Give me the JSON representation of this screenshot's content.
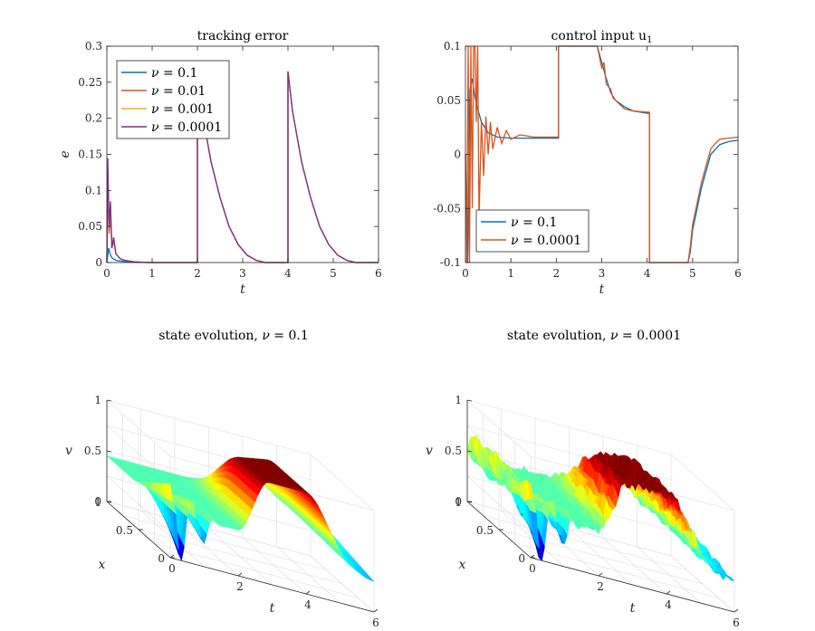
{
  "chart_data": [
    {
      "id": "tracking",
      "type": "line",
      "title": "tracking error",
      "xlabel": "t",
      "ylabel": "e",
      "xlim": [
        0,
        6
      ],
      "ylim": [
        0,
        0.3
      ],
      "xticks": [
        "0",
        "1",
        "2",
        "3",
        "4",
        "5",
        "6"
      ],
      "yticks": [
        "0",
        "0.05",
        "0.1",
        "0.15",
        "0.2",
        "0.25",
        "0.3"
      ],
      "legend_position": "top-left",
      "series": [
        {
          "name": "ν = 0.1",
          "legend_value": "0.1",
          "color": "#0072BD",
          "x": [
            0,
            0.04,
            0.08,
            0.12,
            0.2,
            0.3,
            0.45,
            0.6,
            0.8,
            1.0,
            2.0,
            2.0,
            2.1,
            2.3,
            2.5,
            2.7,
            2.9,
            3.1,
            3.3,
            3.5,
            4.0,
            4.0,
            4.1,
            4.3,
            4.5,
            4.7,
            4.9,
            5.1,
            5.3,
            5.5,
            6.0
          ],
          "y": [
            0,
            0.02,
            0.01,
            0.006,
            0.003,
            0.002,
            0.001,
            0.0005,
            0.0002,
            0,
            0,
            0.265,
            0.21,
            0.14,
            0.09,
            0.05,
            0.025,
            0.01,
            0.003,
            0,
            0,
            0.265,
            0.21,
            0.14,
            0.09,
            0.05,
            0.025,
            0.01,
            0.003,
            0,
            0
          ]
        },
        {
          "name": "ν = 0.01",
          "legend_value": "0.01",
          "color": "#D95319",
          "x": [
            0,
            0.02,
            0.05,
            0.08,
            0.11,
            0.15,
            0.2,
            0.3,
            0.4,
            0.6,
            0.8,
            1.0,
            2.0,
            2.0,
            2.1,
            2.3,
            2.5,
            2.7,
            2.9,
            3.1,
            3.3,
            3.5,
            4.0,
            4.0,
            4.1,
            4.3,
            4.5,
            4.7,
            4.9,
            5.1,
            5.3,
            5.5,
            6.0
          ],
          "y": [
            0,
            0.1,
            0.04,
            0.07,
            0.02,
            0.03,
            0.012,
            0.005,
            0.003,
            0.001,
            0.0003,
            0,
            0,
            0.265,
            0.21,
            0.14,
            0.09,
            0.05,
            0.025,
            0.01,
            0.003,
            0,
            0,
            0.265,
            0.21,
            0.14,
            0.09,
            0.05,
            0.025,
            0.01,
            0.003,
            0,
            0
          ]
        },
        {
          "name": "ν = 0.001",
          "legend_value": "0.001",
          "color": "#EDB120",
          "x": [
            0,
            0.02,
            0.05,
            0.08,
            0.11,
            0.15,
            0.2,
            0.3,
            0.4,
            0.6,
            0.8,
            1.0,
            2.0,
            2.0,
            2.1,
            2.3,
            2.5,
            2.7,
            2.9,
            3.1,
            3.3,
            3.5,
            4.0,
            4.0,
            4.1,
            4.3,
            4.5,
            4.7,
            4.9,
            5.1,
            5.3,
            5.5,
            6.0
          ],
          "y": [
            0,
            0.13,
            0.05,
            0.08,
            0.02,
            0.035,
            0.012,
            0.005,
            0.003,
            0.001,
            0.0003,
            0,
            0,
            0.265,
            0.21,
            0.14,
            0.09,
            0.05,
            0.025,
            0.01,
            0.003,
            0,
            0,
            0.265,
            0.21,
            0.14,
            0.09,
            0.05,
            0.025,
            0.01,
            0.003,
            0,
            0
          ]
        },
        {
          "name": "ν = 0.0001",
          "legend_value": "0.0001",
          "color": "#7E2F8E",
          "x": [
            0,
            0.02,
            0.05,
            0.08,
            0.11,
            0.15,
            0.2,
            0.3,
            0.4,
            0.6,
            0.8,
            1.0,
            2.0,
            2.0,
            2.1,
            2.3,
            2.5,
            2.7,
            2.9,
            3.1,
            3.3,
            3.5,
            4.0,
            4.0,
            4.1,
            4.3,
            4.5,
            4.7,
            4.9,
            5.1,
            5.3,
            5.5,
            6.0
          ],
          "y": [
            0,
            0.145,
            0.05,
            0.085,
            0.02,
            0.035,
            0.012,
            0.005,
            0.003,
            0.001,
            0.0003,
            0,
            0,
            0.265,
            0.21,
            0.14,
            0.09,
            0.05,
            0.025,
            0.01,
            0.003,
            0,
            0,
            0.265,
            0.21,
            0.14,
            0.09,
            0.05,
            0.025,
            0.01,
            0.003,
            0,
            0
          ]
        }
      ]
    },
    {
      "id": "control",
      "type": "line",
      "title": "control input u",
      "title_subscript": "1",
      "xlabel": "t",
      "ylabel": "",
      "xlim": [
        0,
        6
      ],
      "ylim": [
        -0.1,
        0.1
      ],
      "xticks": [
        "0",
        "1",
        "2",
        "3",
        "4",
        "5",
        "6"
      ],
      "yticks": [
        "-0.1",
        "-0.05",
        "0",
        "0.05",
        "0.1"
      ],
      "legend_position": "bottom-left",
      "series": [
        {
          "name": "ν = 0.1",
          "legend_value": "0.1",
          "color": "#0072BD",
          "x": [
            0,
            0.05,
            0.1,
            0.15,
            0.2,
            0.25,
            0.35,
            0.5,
            0.7,
            1.0,
            1.5,
            2.0,
            2.05,
            2.05,
            2.9,
            3.0,
            3.1,
            3.2,
            3.3,
            3.5,
            3.7,
            4.0,
            4.05,
            4.05,
            4.9,
            4.95,
            5.0,
            5.2,
            5.4,
            5.6,
            5.8,
            6.0
          ],
          "y": [
            0,
            -0.1,
            0.06,
            0.07,
            0.055,
            0.045,
            0.03,
            0.02,
            0.016,
            0.015,
            0.015,
            0.015,
            0.015,
            0.1,
            0.1,
            0.085,
            0.07,
            0.057,
            0.05,
            0.044,
            0.04,
            0.038,
            0.038,
            -0.1,
            -0.1,
            -0.09,
            -0.07,
            -0.03,
            0.0,
            0.009,
            0.012,
            0.013
          ]
        },
        {
          "name": "ν = 0.0001",
          "legend_value": "0.0001",
          "color": "#D95319",
          "x": [
            0,
            0.03,
            0.06,
            0.09,
            0.12,
            0.15,
            0.18,
            0.21,
            0.24,
            0.27,
            0.3,
            0.35,
            0.4,
            0.45,
            0.5,
            0.55,
            0.6,
            0.7,
            0.8,
            0.9,
            1.0,
            1.2,
            1.5,
            2.05,
            2.05,
            2.9,
            3.0,
            3.05,
            3.1,
            3.2,
            3.25,
            3.3,
            3.5,
            3.7,
            4.0,
            4.05,
            4.05,
            4.9,
            4.95,
            5.0,
            5.2,
            5.4,
            5.5,
            5.6,
            5.8,
            6.0
          ],
          "y": [
            0,
            -0.1,
            0.1,
            -0.1,
            0.1,
            -0.05,
            0.1,
            0.1,
            0.03,
            0.1,
            -0.06,
            0.03,
            -0.02,
            0.035,
            0.0,
            0.03,
            0.005,
            0.025,
            0.01,
            0.022,
            0.014,
            0.018,
            0.016,
            0.016,
            0.1,
            0.1,
            0.08,
            0.085,
            0.065,
            0.06,
            0.052,
            0.05,
            0.042,
            0.04,
            0.039,
            0.039,
            -0.1,
            -0.1,
            -0.085,
            -0.065,
            -0.025,
            0.005,
            0.01,
            0.014,
            0.015,
            0.016
          ]
        }
      ]
    },
    {
      "id": "surf1",
      "type": "surface",
      "title": "state evolution, ν = 0.1",
      "nu_label": "0.1",
      "xlabel": "t",
      "ylabel": "x",
      "zlabel": "v",
      "xlim": [
        0,
        6
      ],
      "ylim": [
        0,
        1
      ],
      "zlim": [
        0,
        1
      ],
      "xticks": [
        "0",
        "2",
        "4",
        "6"
      ],
      "yticks": [
        "0",
        "0.5",
        "1"
      ],
      "zticks": [
        "0",
        "0.5",
        "1"
      ],
      "colormap": "jet"
    },
    {
      "id": "surf2",
      "type": "surface",
      "title": "state evolution, ν = 0.0001",
      "nu_label": "0.0001",
      "xlabel": "t",
      "ylabel": "x",
      "zlabel": "v",
      "xlim": [
        0,
        6
      ],
      "ylim": [
        0,
        1
      ],
      "zlim": [
        0,
        1
      ],
      "xticks": [
        "0",
        "2",
        "4",
        "6"
      ],
      "yticks": [
        "0",
        "0.5",
        "1"
      ],
      "zticks": [
        "0",
        "0.5",
        "1"
      ],
      "colormap": "jet"
    }
  ]
}
